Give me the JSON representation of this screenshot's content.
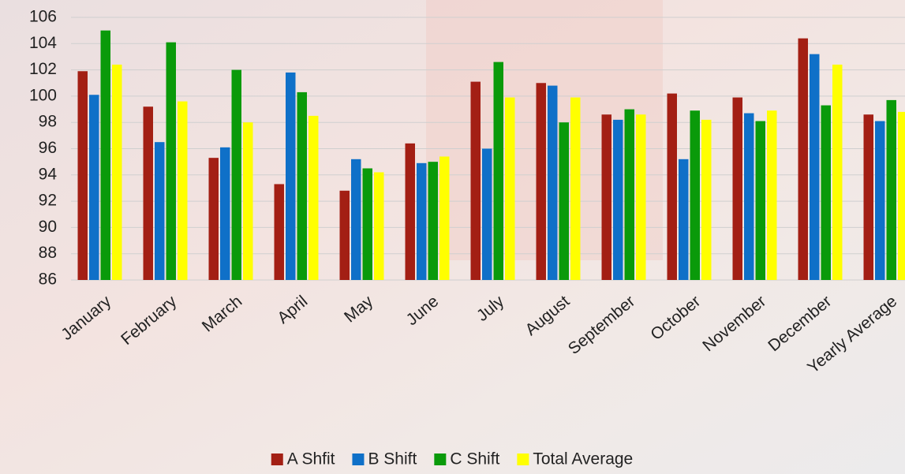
{
  "chart_data": {
    "type": "bar",
    "categories": [
      "January",
      "February",
      "March",
      "April",
      "May",
      "June",
      "July",
      "August",
      "September",
      "October",
      "November",
      "December",
      "Yearly Average"
    ],
    "series": [
      {
        "name": "A Shfit",
        "color": "#a31f14",
        "values": [
          101.9,
          99.2,
          95.3,
          93.3,
          92.8,
          96.4,
          101.1,
          101.0,
          98.6,
          100.2,
          99.9,
          104.4,
          98.6
        ]
      },
      {
        "name": "B Shift",
        "color": "#0f70c8",
        "values": [
          100.1,
          96.5,
          96.1,
          101.8,
          95.2,
          94.9,
          96.0,
          100.8,
          98.2,
          95.2,
          98.7,
          103.2,
          98.1
        ]
      },
      {
        "name": "C Shift",
        "color": "#0a9a0a",
        "values": [
          105.0,
          104.1,
          102.0,
          100.3,
          94.5,
          95.0,
          102.6,
          98.0,
          99.0,
          98.9,
          98.1,
          99.3,
          99.7
        ]
      },
      {
        "name": "Total Average",
        "color": "#ffff00",
        "values": [
          102.4,
          99.6,
          98.0,
          98.5,
          94.2,
          95.4,
          99.9,
          99.9,
          98.6,
          98.2,
          98.9,
          102.4,
          98.8
        ]
      }
    ],
    "ylim": [
      86,
      106
    ],
    "yticks": [
      86,
      88,
      90,
      92,
      94,
      96,
      98,
      100,
      102,
      104,
      106
    ],
    "grid": true,
    "legend": "bottom"
  }
}
